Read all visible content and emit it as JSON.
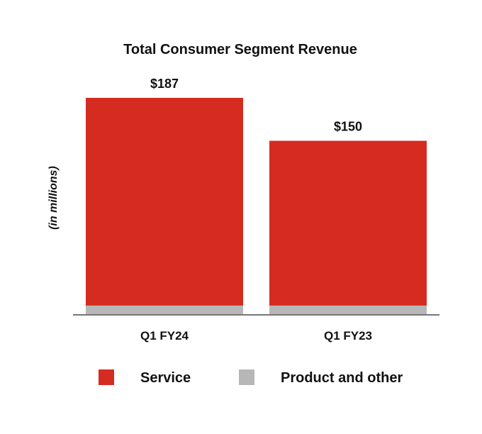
{
  "chart_data": {
    "type": "bar",
    "stacked": true,
    "title": "Total Consumer Segment Revenue",
    "xlabel": "",
    "ylabel": "(in millions)",
    "categories": [
      "Q1 FY24",
      "Q1 FY23"
    ],
    "totals": [
      187,
      150
    ],
    "total_labels": [
      "$187",
      "$150"
    ],
    "series": [
      {
        "name": "Product and other",
        "values": [
          8,
          8
        ],
        "color": "#b7b7b7"
      },
      {
        "name": "Service",
        "values": [
          179,
          142
        ],
        "color": "#d62b20"
      }
    ],
    "legend_order": [
      "Service",
      "Product and other"
    ],
    "legend_placement": "bottom",
    "ylim": [
      0,
      200
    ],
    "grid": false,
    "axis_color": "#777777"
  }
}
